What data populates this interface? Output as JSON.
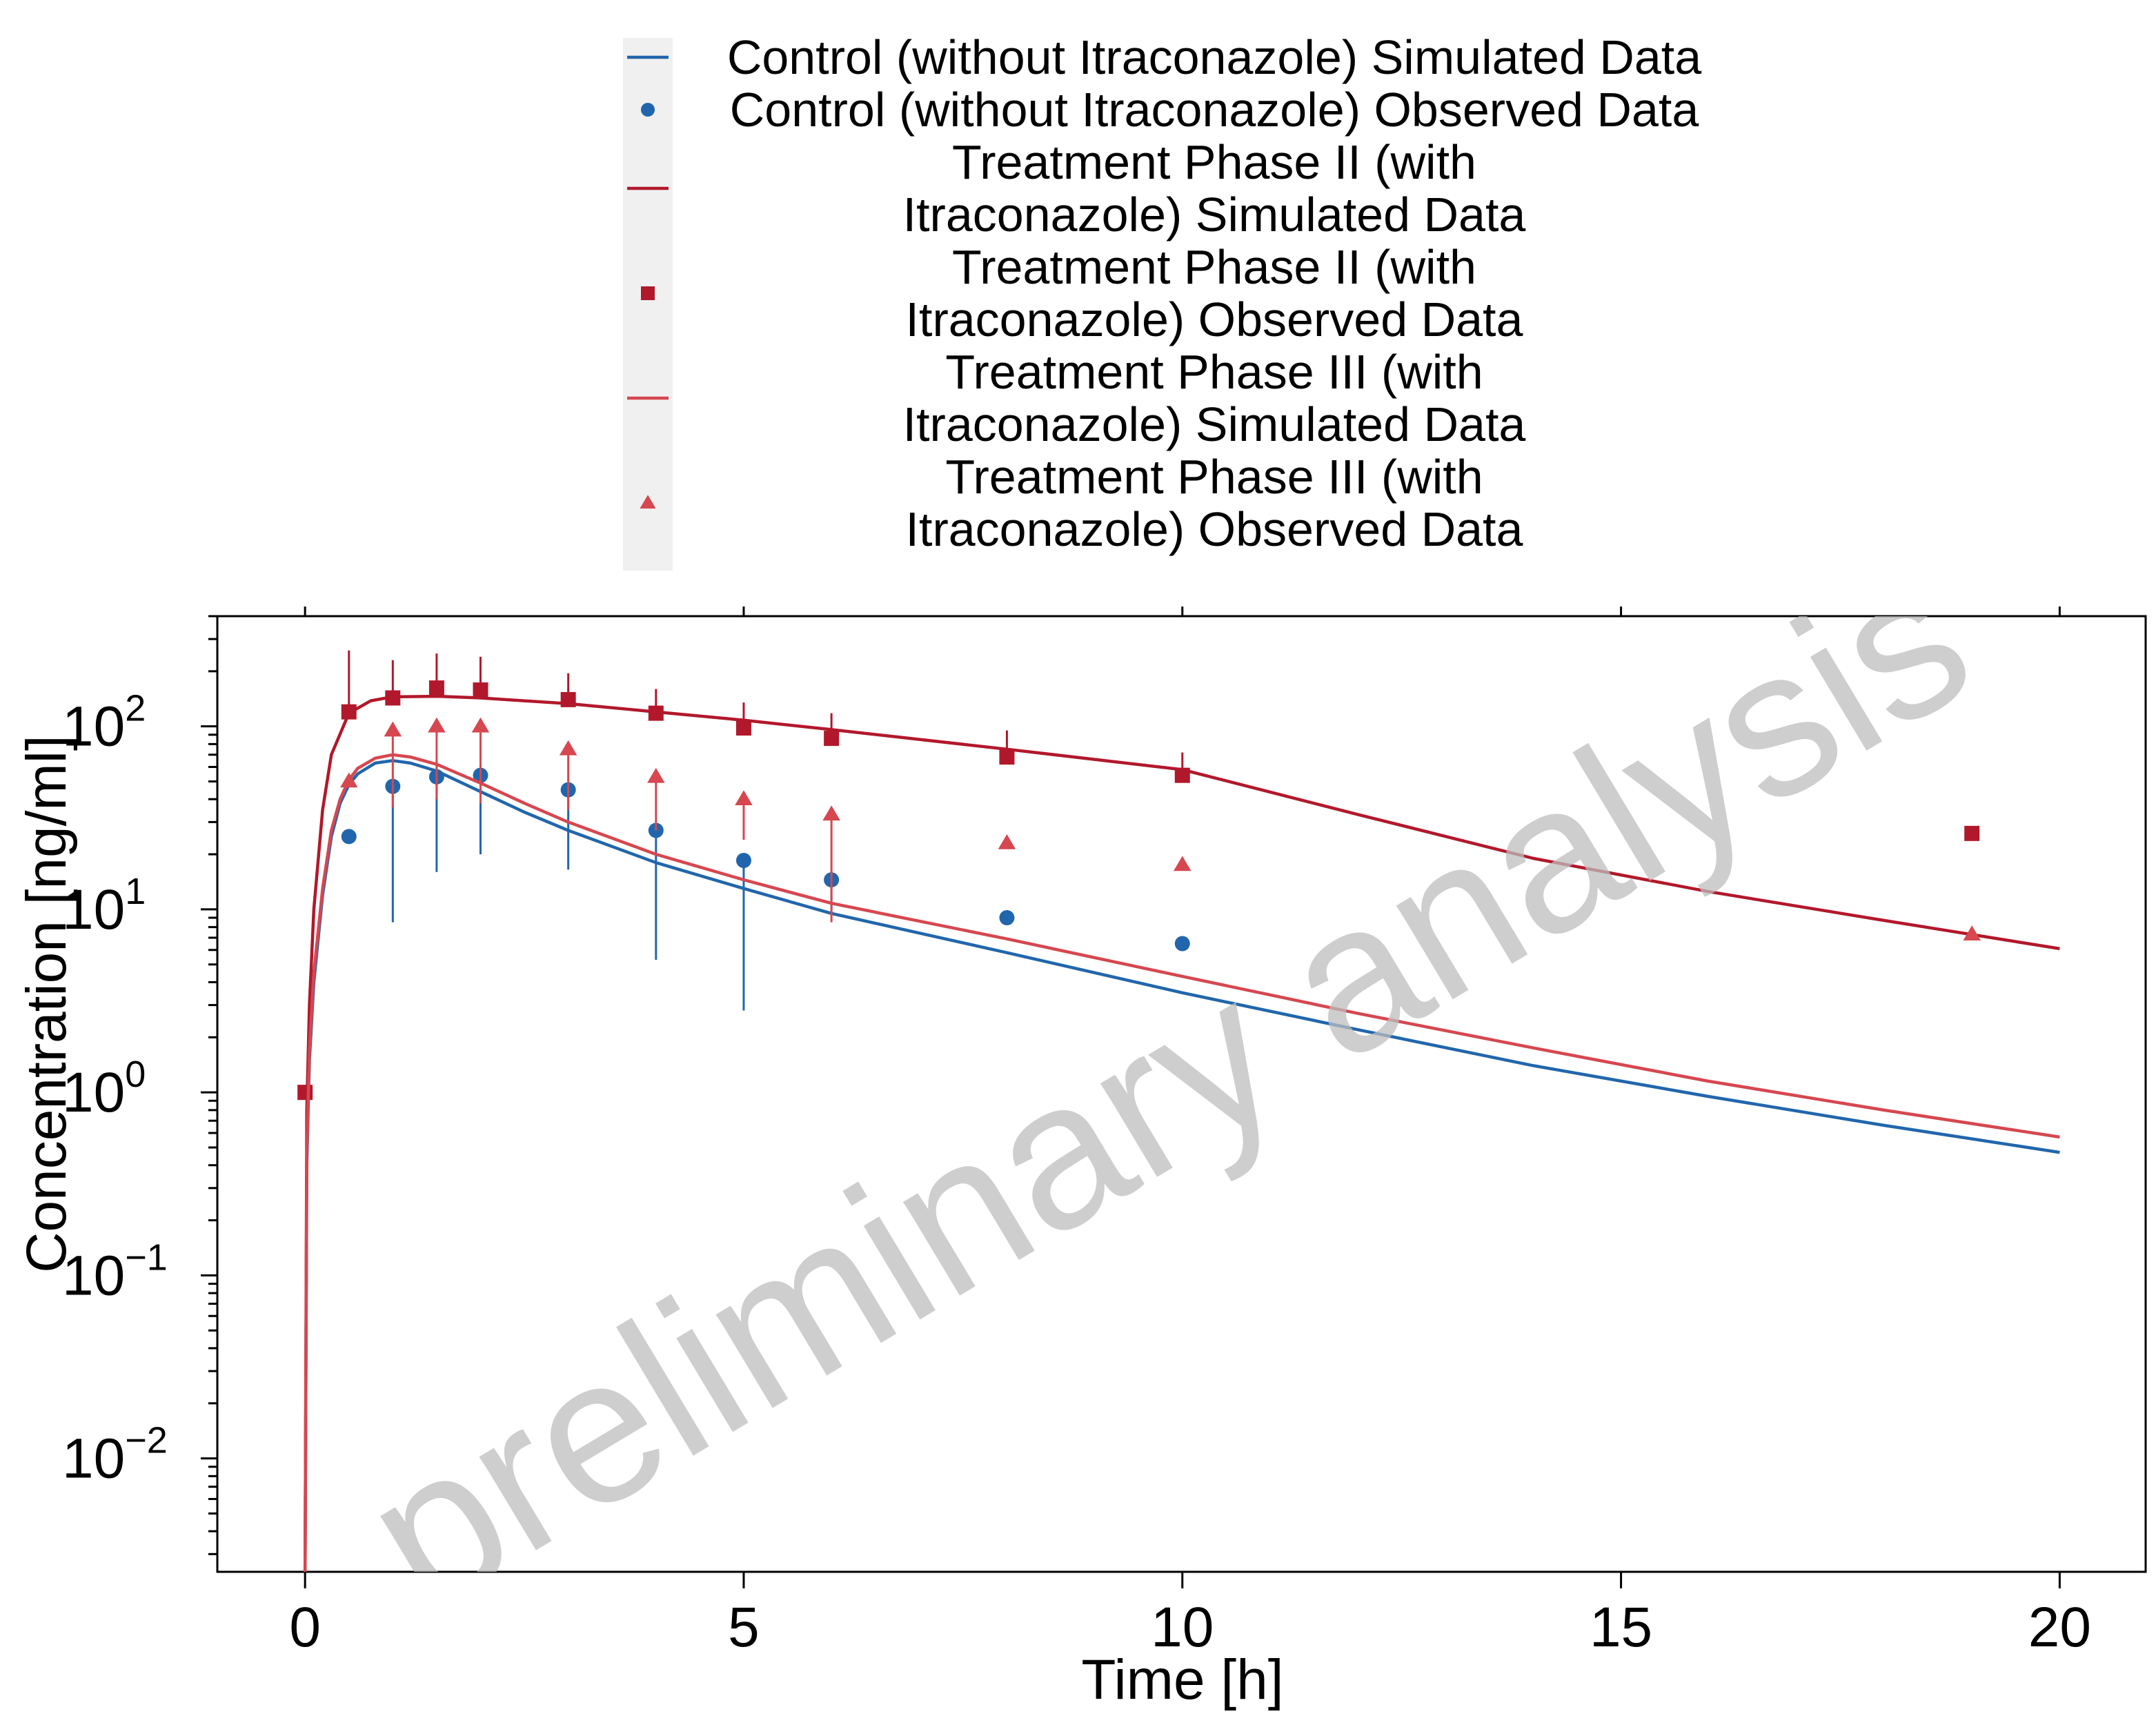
{
  "chart_data": {
    "type": "line",
    "title": "",
    "xlabel": "Time [h]",
    "ylabel": "Concentration [ng/ml]",
    "xlim": [
      -1,
      20.98
    ],
    "ylim": [
      0.0024,
      400
    ],
    "y_scale": "log",
    "grid": false,
    "legend_position": "top",
    "x_ticks": [
      0,
      5,
      10,
      15,
      20
    ],
    "y_ticks": [
      {
        "value": 0.01,
        "base": "10",
        "exp": "−2"
      },
      {
        "value": 0.1,
        "base": "10",
        "exp": "−1"
      },
      {
        "value": 1,
        "base": "10",
        "exp": "0"
      },
      {
        "value": 10,
        "base": "10",
        "exp": "1"
      },
      {
        "value": 100,
        "base": "10",
        "exp": "2"
      }
    ],
    "watermark": "preliminary analysis",
    "series": [
      {
        "name": "Control (without Itraconazole) Simulated Data",
        "legend_lines": [
          "Control (without Itraconazole) Simulated Data"
        ],
        "kind": "line",
        "color": "#2166ac",
        "x": [
          0,
          0.02,
          0.05,
          0.1,
          0.2,
          0.3,
          0.4,
          0.5,
          0.6,
          0.8,
          1.0,
          1.2,
          1.5,
          2,
          2.5,
          3,
          4,
          5,
          6,
          8,
          10,
          12,
          14,
          16,
          18,
          20
        ],
        "y": [
          0.0024,
          0.4,
          1.5,
          4,
          12,
          25,
          38,
          48,
          55,
          63,
          65,
          63,
          57,
          44,
          34,
          27,
          18,
          13,
          9.5,
          5.8,
          3.5,
          2.2,
          1.4,
          0.95,
          0.66,
          0.47
        ]
      },
      {
        "name": "Control (without Itraconazole) Observed Data",
        "legend_lines": [
          "Control (without Itraconazole) Observed Data"
        ],
        "kind": "points",
        "marker": "circle",
        "color": "#2166ac",
        "x": [
          0.5,
          1,
          1.5,
          2,
          3,
          4,
          5,
          6,
          8,
          10
        ],
        "y": [
          25,
          47,
          53,
          54,
          45,
          27,
          18.5,
          14.5,
          9,
          6.5
        ],
        "err_low": [
          null,
          8.5,
          16,
          20,
          16.5,
          5.3,
          2.8,
          9.5,
          null,
          null
        ],
        "err_high": [
          null,
          null,
          null,
          null,
          null,
          null,
          null,
          null,
          null,
          null
        ]
      },
      {
        "name": "Treatment Phase II (with Itraconazole) Simulated Data",
        "legend_lines": [
          "Treatment Phase II (with",
          "Itraconazole) Simulated Data"
        ],
        "kind": "line",
        "color": "#b2182b",
        "x": [
          0,
          0.02,
          0.05,
          0.1,
          0.2,
          0.3,
          0.5,
          0.75,
          1.0,
          1.5,
          2,
          3,
          4,
          5,
          6,
          8,
          10,
          12,
          14,
          16,
          18,
          20
        ],
        "y": [
          0.0024,
          0.8,
          3,
          10,
          35,
          70,
          118,
          138,
          145,
          146,
          143,
          133,
          120,
          108,
          96,
          75,
          58,
          33,
          19,
          12.5,
          8.7,
          6.1
        ]
      },
      {
        "name": "Treatment Phase II (with Itraconazole) Observed Data",
        "legend_lines": [
          "Treatment Phase II (with",
          "Itraconazole) Observed Data"
        ],
        "kind": "points",
        "marker": "square",
        "color": "#b2182b",
        "x": [
          0,
          0.5,
          1,
          1.5,
          2,
          3,
          4,
          5,
          6,
          8,
          10,
          19
        ],
        "y": [
          1,
          120,
          143,
          162,
          158,
          140,
          118,
          98,
          86,
          68,
          54,
          26
        ],
        "err_low": [
          null,
          null,
          null,
          null,
          null,
          null,
          null,
          null,
          null,
          null,
          null,
          null
        ],
        "err_high": [
          null,
          260,
          230,
          250,
          240,
          195,
          160,
          135,
          118,
          95,
          72,
          null
        ]
      },
      {
        "name": "Treatment Phase III (with Itraconazole) Simulated Data",
        "legend_lines": [
          "Treatment Phase III (with",
          "Itraconazole) Simulated Data"
        ],
        "kind": "line",
        "color": "#d6474f",
        "x": [
          0,
          0.02,
          0.05,
          0.1,
          0.2,
          0.3,
          0.4,
          0.5,
          0.6,
          0.8,
          1.0,
          1.2,
          1.5,
          2,
          2.5,
          3,
          4,
          5,
          6,
          8,
          10,
          12,
          14,
          16,
          18,
          20
        ],
        "y": [
          0.0024,
          0.45,
          1.7,
          4.5,
          13,
          27,
          40,
          51,
          59,
          67,
          70,
          68,
          62,
          49,
          38,
          30,
          20,
          14.5,
          10.8,
          6.9,
          4.3,
          2.7,
          1.75,
          1.15,
          0.8,
          0.57
        ]
      },
      {
        "name": "Treatment Phase III (with Itraconazole) Observed Data",
        "legend_lines": [
          "Treatment Phase III (with",
          "Itraconazole) Observed Data"
        ],
        "kind": "points",
        "marker": "triangle",
        "color": "#d6474f",
        "x": [
          0.5,
          1,
          1.5,
          2,
          3,
          4,
          5,
          6,
          8,
          10,
          19
        ],
        "y": [
          50,
          95,
          100,
          100,
          75,
          53,
          40,
          33,
          23,
          17.5,
          7.3
        ],
        "err_low": [
          null,
          36,
          40,
          38,
          35,
          27,
          24,
          8.5,
          null,
          null,
          null
        ],
        "err_high": [
          null,
          null,
          null,
          null,
          null,
          null,
          null,
          null,
          null,
          null,
          null
        ]
      }
    ]
  }
}
